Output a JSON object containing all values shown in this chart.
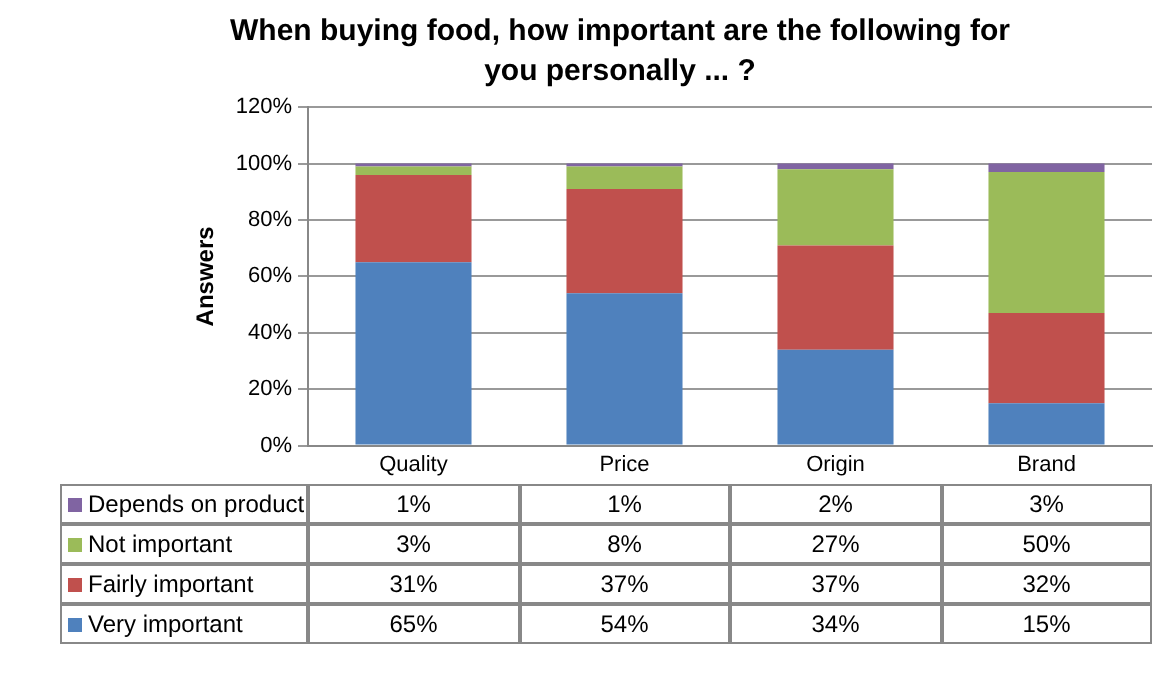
{
  "chart_data": {
    "type": "bar",
    "title": "When buying food, how important are the following for you personally ... ?",
    "ylabel": "Answers",
    "stacked": true,
    "categories": [
      "Quality",
      "Price",
      "Origin",
      "Brand"
    ],
    "ylim": [
      0,
      120
    ],
    "yticks": [
      {
        "value": 0,
        "label": "0%"
      },
      {
        "value": 20,
        "label": "20%"
      },
      {
        "value": 40,
        "label": "40%"
      },
      {
        "value": 60,
        "label": "60%"
      },
      {
        "value": 80,
        "label": "80%"
      },
      {
        "value": 100,
        "label": "100%"
      },
      {
        "value": 120,
        "label": "120%"
      }
    ],
    "grid": "y",
    "legend": "bottom",
    "series": [
      {
        "name": "Very important",
        "color": "#4f81bd",
        "values": [
          65,
          54,
          34,
          15
        ],
        "value_labels": [
          "65%",
          "54%",
          "34%",
          "15%"
        ]
      },
      {
        "name": "Fairly important",
        "color": "#c0504d",
        "values": [
          31,
          37,
          37,
          32
        ],
        "value_labels": [
          "31%",
          "37%",
          "37%",
          "32%"
        ]
      },
      {
        "name": "Not important",
        "color": "#9bbb59",
        "values": [
          3,
          8,
          27,
          50
        ],
        "value_labels": [
          "3%",
          "8%",
          "27%",
          "50%"
        ]
      },
      {
        "name": "Depends on product",
        "color": "#8064a2",
        "values": [
          1,
          1,
          2,
          3
        ],
        "value_labels": [
          "1%",
          "1%",
          "2%",
          "3%"
        ]
      }
    ]
  }
}
